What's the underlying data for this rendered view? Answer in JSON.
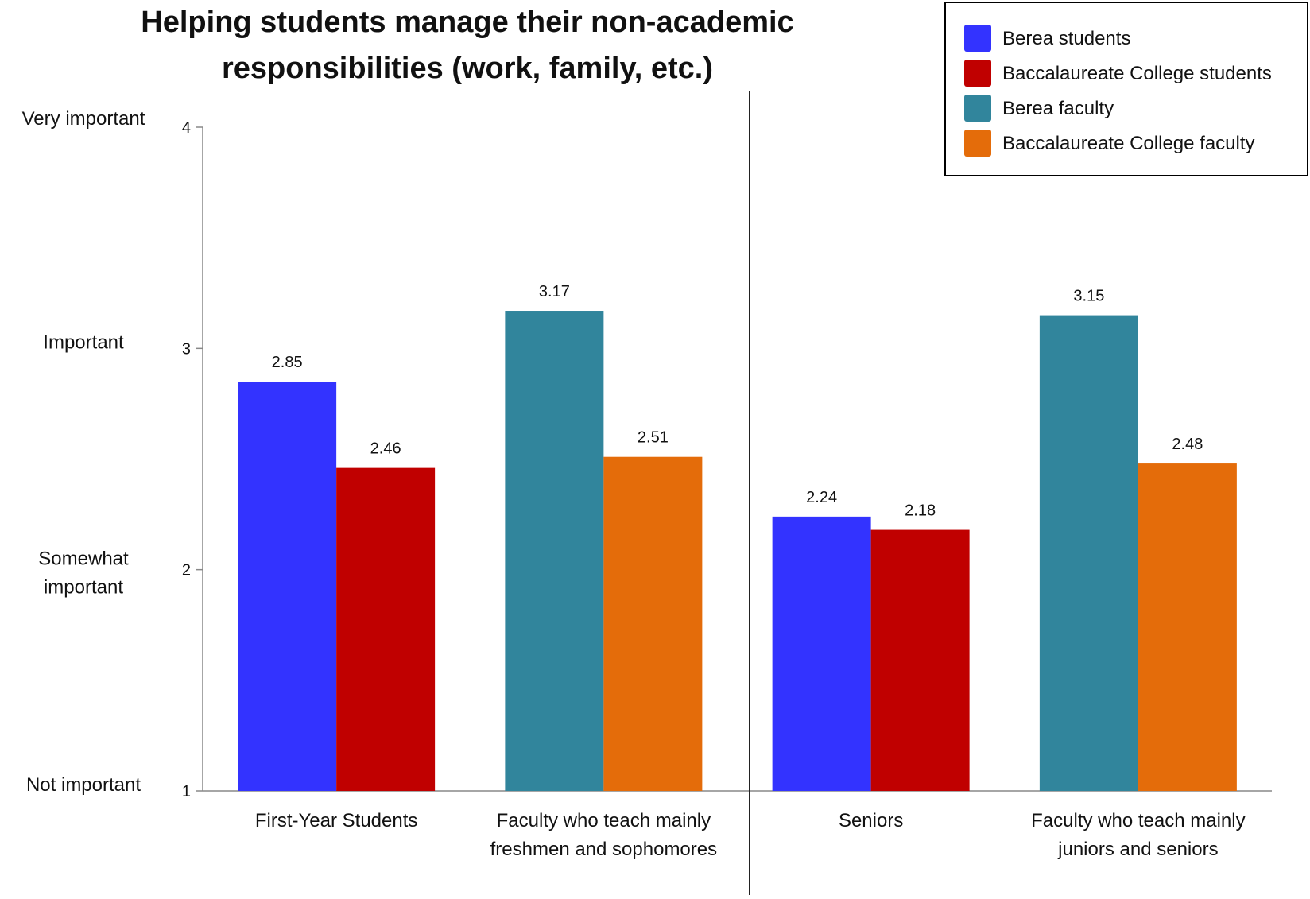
{
  "chart_data": {
    "type": "bar",
    "title_lines": [
      "Helping students manage their non-academic",
      "responsibilities (work, family, etc.)"
    ],
    "categories": [
      [
        "First-Year Students"
      ],
      [
        "Faculty who teach mainly",
        "freshmen and sophomores"
      ],
      [
        "Seniors"
      ],
      [
        "Faculty who teach mainly",
        "juniors and seniors"
      ]
    ],
    "series": [
      {
        "name": "Berea students",
        "color": "#3333ff",
        "values": [
          2.85,
          null,
          2.24,
          null
        ]
      },
      {
        "name": "Baccalaureate College students",
        "color": "#c00000",
        "values": [
          2.46,
          null,
          2.18,
          null
        ]
      },
      {
        "name": "Berea faculty",
        "color": "#31859c",
        "values": [
          null,
          3.17,
          null,
          3.15
        ]
      },
      {
        "name": "Baccalaureate College faculty",
        "color": "#e46c0a",
        "values": [
          null,
          2.51,
          null,
          2.48
        ]
      }
    ],
    "ylim": [
      1,
      4
    ],
    "yticks": [
      1,
      2,
      3,
      4
    ],
    "scale_labels": [
      {
        "value": 4,
        "lines": [
          "Very important"
        ]
      },
      {
        "value": 3,
        "lines": [
          "Important"
        ]
      },
      {
        "value": 2,
        "lines": [
          "Somewhat",
          "important"
        ]
      },
      {
        "value": 1,
        "lines": [
          "Not important"
        ]
      }
    ],
    "legend_position": "top-right",
    "grid": false
  }
}
